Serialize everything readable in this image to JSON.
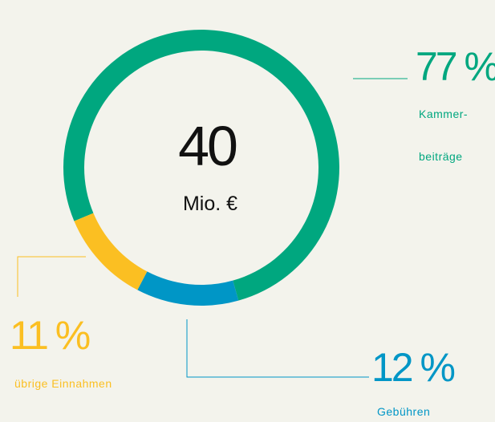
{
  "chart_data": {
    "type": "pie",
    "total": 40,
    "total_unit": "Mio. €",
    "categories": [
      [
        "Kammer-",
        "beiträge"
      ],
      [
        "Gebühren"
      ],
      [
        "übrige Einnahmen"
      ]
    ],
    "values": [
      77,
      12,
      11
    ],
    "value_labels": [
      "77 %",
      "12 %",
      "11 %"
    ],
    "colors": [
      "#00a77f",
      "#0096c6",
      "#fbbf22"
    ]
  }
}
